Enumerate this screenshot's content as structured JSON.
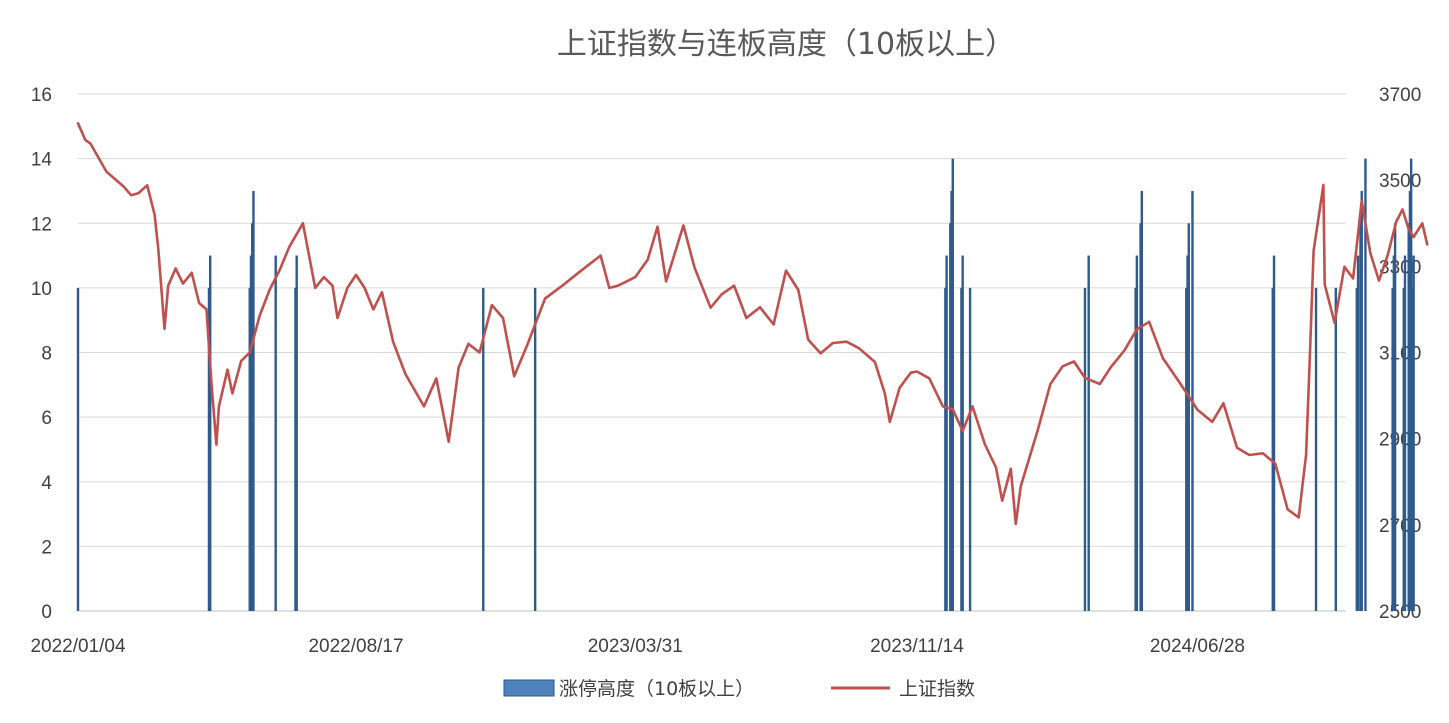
{
  "chart_data": {
    "type": "bar+line",
    "title": "上证指数与连板高度（10板以上）",
    "x_tick_labels": [
      "2022/01/04",
      "2022/08/17",
      "2023/03/31",
      "2023/11/14",
      "2024/06/28"
    ],
    "y_left": {
      "ticks": [
        "0",
        "2",
        "4",
        "6",
        "8",
        "10",
        "12",
        "14",
        "16"
      ],
      "range": [
        0,
        16
      ]
    },
    "y_right": {
      "ticks": [
        "2500",
        "2700",
        "2900",
        "3100",
        "3300",
        "3500",
        "3700"
      ],
      "range": [
        2500,
        3700
      ]
    },
    "grid": true,
    "legend": {
      "position": "bottom"
    },
    "series": [
      {
        "name": "涨停高度（10板以上）",
        "kind": "bar",
        "axis": "left",
        "color": "#2e5a8c",
        "points": [
          [
            "2022/01/04",
            10
          ],
          [
            "2022/04/20",
            10
          ],
          [
            "2022/04/21",
            11
          ],
          [
            "2022/05/23",
            10
          ],
          [
            "2022/05/24",
            11
          ],
          [
            "2022/05/25",
            12
          ],
          [
            "2022/05/26",
            13
          ],
          [
            "2022/06/13",
            11
          ],
          [
            "2022/06/29",
            10
          ],
          [
            "2022/06/30",
            11
          ],
          [
            "2022/11/28",
            10
          ],
          [
            "2023/01/09",
            10
          ],
          [
            "2023/12/07",
            10
          ],
          [
            "2023/12/08",
            11
          ],
          [
            "2023/12/11",
            12
          ],
          [
            "2023/12/12",
            13
          ],
          [
            "2023/12/13",
            14
          ],
          [
            "2023/12/20",
            10
          ],
          [
            "2023/12/21",
            11
          ],
          [
            "2023/12/27",
            10
          ],
          [
            "2024/03/29",
            10
          ],
          [
            "2024/04/01",
            11
          ],
          [
            "2024/05/09",
            10
          ],
          [
            "2024/05/10",
            11
          ],
          [
            "2024/05/13",
            12
          ],
          [
            "2024/05/14",
            13
          ],
          [
            "2024/06/19",
            10
          ],
          [
            "2024/06/20",
            11
          ],
          [
            "2024/06/21",
            12
          ],
          [
            "2024/06/24",
            13
          ],
          [
            "2024/08/28",
            10
          ],
          [
            "2024/08/29",
            11
          ],
          [
            "2024/10/02",
            10
          ],
          [
            "2024/10/18",
            10
          ],
          [
            "2024/11/04",
            10
          ],
          [
            "2024/11/05",
            11
          ],
          [
            "2024/11/07",
            12
          ],
          [
            "2024/11/08",
            13
          ],
          [
            "2024/11/11",
            14
          ],
          [
            "2024/12/03",
            10
          ],
          [
            "2024/12/04",
            11
          ],
          [
            "2024/12/05",
            12
          ],
          [
            "2024/12/12",
            10
          ],
          [
            "2024/12/13",
            11
          ],
          [
            "2024/12/16",
            12
          ],
          [
            "2024/12/17",
            13
          ],
          [
            "2024/12/18",
            14
          ],
          [
            "2024/12/19",
            10
          ],
          [
            "2024/12/20",
            11
          ]
        ]
      },
      {
        "name": "上证指数",
        "kind": "line",
        "axis": "right",
        "color": "#c0504d",
        "points": [
          [
            "2022/01/04",
            3632
          ],
          [
            "2022/01/10",
            3593
          ],
          [
            "2022/01/14",
            3585
          ],
          [
            "2022/01/20",
            3555
          ],
          [
            "2022/01/27",
            3520
          ],
          [
            "2022/02/10",
            3485
          ],
          [
            "2022/02/16",
            3465
          ],
          [
            "2022/02/22",
            3470
          ],
          [
            "2022/03/01",
            3488
          ],
          [
            "2022/03/07",
            3420
          ],
          [
            "2022/03/10",
            3340
          ],
          [
            "2022/03/15",
            3155
          ],
          [
            "2022/03/18",
            3255
          ],
          [
            "2022/03/24",
            3295
          ],
          [
            "2022/03/30",
            3260
          ],
          [
            "2022/04/06",
            3285
          ],
          [
            "2022/04/12",
            3215
          ],
          [
            "2022/04/18",
            3200
          ],
          [
            "2022/04/22",
            3030
          ],
          [
            "2022/04/26",
            2886
          ],
          [
            "2022/04/28",
            2975
          ],
          [
            "2022/05/05",
            3060
          ],
          [
            "2022/05/09",
            3005
          ],
          [
            "2022/05/16",
            3080
          ],
          [
            "2022/05/23",
            3100
          ],
          [
            "2022/05/31",
            3185
          ],
          [
            "2022/06/08",
            3245
          ],
          [
            "2022/06/16",
            3290
          ],
          [
            "2022/06/24",
            3345
          ],
          [
            "2022/07/05",
            3400
          ],
          [
            "2022/07/15",
            3250
          ],
          [
            "2022/07/22",
            3275
          ],
          [
            "2022/07/29",
            3255
          ],
          [
            "2022/08/02",
            3180
          ],
          [
            "2022/08/10",
            3250
          ],
          [
            "2022/08/17",
            3280
          ],
          [
            "2022/08/24",
            3250
          ],
          [
            "2022/08/31",
            3200
          ],
          [
            "2022/09/07",
            3240
          ],
          [
            "2022/09/16",
            3125
          ],
          [
            "2022/09/26",
            3050
          ],
          [
            "2022/10/11",
            2975
          ],
          [
            "2022/10/21",
            3040
          ],
          [
            "2022/10/31",
            2893
          ],
          [
            "2022/11/08",
            3065
          ],
          [
            "2022/11/16",
            3120
          ],
          [
            "2022/11/25",
            3100
          ],
          [
            "2022/12/05",
            3210
          ],
          [
            "2022/12/14",
            3180
          ],
          [
            "2022/12/23",
            3045
          ],
          [
            "2023/01/03",
            3120
          ],
          [
            "2023/01/17",
            3225
          ],
          [
            "2023/01/31",
            3255
          ],
          [
            "2023/02/13",
            3285
          ],
          [
            "2023/02/22",
            3305
          ],
          [
            "2023/03/03",
            3325
          ],
          [
            "2023/03/10",
            3250
          ],
          [
            "2023/03/17",
            3255
          ],
          [
            "2023/03/24",
            3265
          ],
          [
            "2023/03/31",
            3275
          ],
          [
            "2023/04/10",
            3315
          ],
          [
            "2023/04/18",
            3392
          ],
          [
            "2023/04/25",
            3265
          ],
          [
            "2023/05/09",
            3395
          ],
          [
            "2023/05/18",
            3297
          ],
          [
            "2023/05/31",
            3204
          ],
          [
            "2023/06/09",
            3235
          ],
          [
            "2023/06/19",
            3255
          ],
          [
            "2023/06/29",
            3180
          ],
          [
            "2023/07/10",
            3205
          ],
          [
            "2023/07/21",
            3165
          ],
          [
            "2023/07/31",
            3290
          ],
          [
            "2023/08/10",
            3245
          ],
          [
            "2023/08/18",
            3130
          ],
          [
            "2023/08/28",
            3098
          ],
          [
            "2023/09/07",
            3122
          ],
          [
            "2023/09/18",
            3125
          ],
          [
            "2023/09/28",
            3110
          ],
          [
            "2023/10/11",
            3078
          ],
          [
            "2023/10/19",
            3005
          ],
          [
            "2023/10/23",
            2939
          ],
          [
            "2023/10/31",
            3018
          ],
          [
            "2023/11/09",
            3053
          ],
          [
            "2023/11/14",
            3056
          ],
          [
            "2023/11/24",
            3040
          ],
          [
            "2023/12/05",
            2975
          ],
          [
            "2023/12/13",
            2968
          ],
          [
            "2023/12/21",
            2918
          ],
          [
            "2023/12/29",
            2975
          ],
          [
            "2024/01/08",
            2887
          ],
          [
            "2024/01/17",
            2833
          ],
          [
            "2024/01/22",
            2756
          ],
          [
            "2024/01/29",
            2830
          ],
          [
            "2024/02/02",
            2702
          ],
          [
            "2024/02/06",
            2789
          ],
          [
            "2024/02/20",
            2922
          ],
          [
            "2024/03/01",
            3027
          ],
          [
            "2024/03/11",
            3068
          ],
          [
            "2024/03/20",
            3079
          ],
          [
            "2024/03/29",
            3041
          ],
          [
            "2024/04/10",
            3027
          ],
          [
            "2024/04/19",
            3066
          ],
          [
            "2024/04/30",
            3105
          ],
          [
            "2024/05/10",
            3154
          ],
          [
            "2024/05/20",
            3171
          ],
          [
            "2024/05/31",
            3087
          ],
          [
            "2024/06/12",
            3037
          ],
          [
            "2024/06/21",
            2998
          ],
          [
            "2024/06/28",
            2967
          ],
          [
            "2024/07/10",
            2939
          ],
          [
            "2024/07/19",
            2982
          ],
          [
            "2024/07/30",
            2879
          ],
          [
            "2024/08/09",
            2862
          ],
          [
            "2024/08/20",
            2866
          ],
          [
            "2024/08/30",
            2842
          ],
          [
            "2024/09/09",
            2736
          ],
          [
            "2024/09/18",
            2717
          ],
          [
            "2024/09/24",
            2863
          ],
          [
            "2024/09/27",
            3087
          ],
          [
            "2024/09/30",
            3336
          ],
          [
            "2024/10/08",
            3489
          ],
          [
            "2024/10/09",
            3258
          ],
          [
            "2024/10/17",
            3169
          ],
          [
            "2024/10/25",
            3299
          ],
          [
            "2024/11/01",
            3272
          ],
          [
            "2024/11/08",
            3452
          ],
          [
            "2024/11/15",
            3330
          ],
          [
            "2024/11/22",
            3267
          ],
          [
            "2024/11/29",
            3326
          ],
          [
            "2024/12/06",
            3404
          ],
          [
            "2024/12/11",
            3432
          ],
          [
            "2024/12/16",
            3386
          ],
          [
            "2024/12/20",
            3368
          ],
          [
            "2024/12/27",
            3400
          ],
          [
            "2024/12/31",
            3351
          ]
        ]
      }
    ]
  }
}
